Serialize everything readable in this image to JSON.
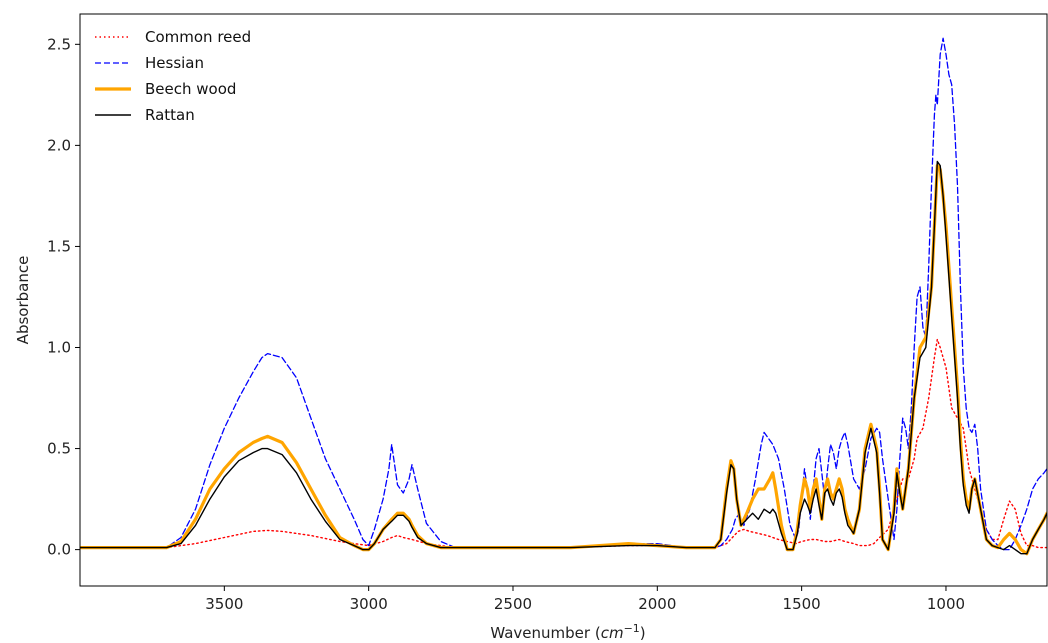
{
  "chart_data": {
    "type": "line",
    "title": "",
    "xlabel": "Wavenumber",
    "xlabel_unit": "cm",
    "xlabel_unit_exp": "−1",
    "ylabel": "Absorbance",
    "xlim": [
      4000,
      650
    ],
    "x_reversed": true,
    "ylim": [
      -0.18,
      2.65
    ],
    "xticks": [
      3500,
      3000,
      2500,
      2000,
      1500,
      1000
    ],
    "yticks": [
      0.0,
      0.5,
      1.0,
      1.5,
      2.0,
      2.5
    ],
    "grid": false,
    "legend": "top-left",
    "series": [
      {
        "name": "Common reed",
        "color": "#ff0000",
        "style": "dotted",
        "x": [
          4000,
          3800,
          3700,
          3600,
          3500,
          3400,
          3350,
          3300,
          3200,
          3100,
          3050,
          3000,
          2950,
          2920,
          2900,
          2880,
          2850,
          2800,
          2700,
          2500,
          2300,
          2100,
          2000,
          1900,
          1800,
          1760,
          1740,
          1720,
          1700,
          1680,
          1650,
          1620,
          1600,
          1580,
          1550,
          1520,
          1500,
          1470,
          1450,
          1420,
          1400,
          1370,
          1350,
          1320,
          1300,
          1270,
          1250,
          1230,
          1200,
          1180,
          1160,
          1150,
          1130,
          1110,
          1100,
          1080,
          1060,
          1040,
          1030,
          1020,
          1000,
          980,
          960,
          940,
          920,
          900,
          880,
          860,
          840,
          820,
          800,
          780,
          760,
          740,
          720,
          700,
          680,
          650
        ],
        "y": [
          0.01,
          0.01,
          0.01,
          0.03,
          0.06,
          0.09,
          0.095,
          0.09,
          0.07,
          0.04,
          0.03,
          0.02,
          0.04,
          0.06,
          0.07,
          0.06,
          0.05,
          0.03,
          0.01,
          0.01,
          0.01,
          0.02,
          0.02,
          0.01,
          0.01,
          0.03,
          0.06,
          0.09,
          0.1,
          0.09,
          0.08,
          0.07,
          0.06,
          0.05,
          0.04,
          0.03,
          0.04,
          0.05,
          0.05,
          0.04,
          0.04,
          0.05,
          0.04,
          0.03,
          0.02,
          0.02,
          0.03,
          0.06,
          0.1,
          0.2,
          0.3,
          0.35,
          0.35,
          0.45,
          0.55,
          0.6,
          0.75,
          0.95,
          1.04,
          1.0,
          0.9,
          0.7,
          0.65,
          0.6,
          0.4,
          0.3,
          0.2,
          0.1,
          0.05,
          0.05,
          0.15,
          0.24,
          0.2,
          0.08,
          0.02,
          0.02,
          0.01,
          0.01
        ]
      },
      {
        "name": "Hessian",
        "color": "#0000ff",
        "style": "dashed",
        "x": [
          4000,
          3800,
          3700,
          3650,
          3600,
          3550,
          3500,
          3450,
          3400,
          3370,
          3350,
          3300,
          3250,
          3200,
          3150,
          3100,
          3050,
          3020,
          3000,
          2980,
          2950,
          2930,
          2920,
          2910,
          2900,
          2880,
          2860,
          2850,
          2830,
          2800,
          2750,
          2700,
          2500,
          2300,
          2100,
          2000,
          1900,
          1800,
          1780,
          1760,
          1740,
          1730,
          1720,
          1700,
          1680,
          1660,
          1640,
          1630,
          1620,
          1600,
          1580,
          1560,
          1540,
          1520,
          1510,
          1500,
          1490,
          1480,
          1470,
          1460,
          1450,
          1440,
          1430,
          1420,
          1410,
          1400,
          1390,
          1380,
          1370,
          1360,
          1350,
          1340,
          1320,
          1300,
          1280,
          1260,
          1240,
          1230,
          1220,
          1200,
          1180,
          1170,
          1160,
          1150,
          1140,
          1130,
          1120,
          1110,
          1100,
          1090,
          1080,
          1070,
          1060,
          1050,
          1040,
          1035,
          1030,
          1020,
          1010,
          1000,
          990,
          980,
          970,
          960,
          950,
          940,
          930,
          920,
          910,
          900,
          890,
          880,
          860,
          840,
          820,
          800,
          790,
          780,
          760,
          740,
          720,
          700,
          680,
          660,
          650
        ],
        "y": [
          0.01,
          0.01,
          0.01,
          0.06,
          0.2,
          0.42,
          0.6,
          0.75,
          0.88,
          0.95,
          0.97,
          0.95,
          0.85,
          0.65,
          0.45,
          0.3,
          0.15,
          0.05,
          0.02,
          0.1,
          0.25,
          0.4,
          0.52,
          0.42,
          0.32,
          0.28,
          0.35,
          0.42,
          0.3,
          0.13,
          0.04,
          0.01,
          0.01,
          0.01,
          0.03,
          0.03,
          0.01,
          0.01,
          0.02,
          0.05,
          0.1,
          0.15,
          0.17,
          0.12,
          0.2,
          0.35,
          0.52,
          0.58,
          0.56,
          0.52,
          0.45,
          0.3,
          0.12,
          0.05,
          0.1,
          0.25,
          0.4,
          0.3,
          0.15,
          0.3,
          0.45,
          0.5,
          0.38,
          0.25,
          0.4,
          0.52,
          0.48,
          0.4,
          0.5,
          0.55,
          0.58,
          0.52,
          0.35,
          0.3,
          0.4,
          0.55,
          0.6,
          0.58,
          0.45,
          0.25,
          0.05,
          0.2,
          0.45,
          0.65,
          0.6,
          0.5,
          0.7,
          1.0,
          1.25,
          1.3,
          1.1,
          1.05,
          1.4,
          1.8,
          2.15,
          2.25,
          2.2,
          2.45,
          2.53,
          2.45,
          2.35,
          2.3,
          2.1,
          1.8,
          1.3,
          0.9,
          0.7,
          0.6,
          0.58,
          0.62,
          0.5,
          0.3,
          0.1,
          0.05,
          0.02,
          0.0,
          0.0,
          0.0,
          0.05,
          0.12,
          0.2,
          0.3,
          0.35,
          0.38,
          0.4
        ]
      },
      {
        "name": "Beech wood",
        "color": "#ffa500",
        "style": "solid-thick",
        "x": [
          4000,
          3800,
          3700,
          3650,
          3600,
          3550,
          3500,
          3450,
          3400,
          3370,
          3350,
          3300,
          3250,
          3200,
          3150,
          3100,
          3050,
          3020,
          3000,
          2980,
          2950,
          2920,
          2900,
          2880,
          2860,
          2850,
          2830,
          2800,
          2750,
          2700,
          2500,
          2300,
          2100,
          2000,
          1900,
          1800,
          1780,
          1760,
          1745,
          1735,
          1725,
          1710,
          1690,
          1670,
          1650,
          1630,
          1610,
          1600,
          1590,
          1570,
          1550,
          1530,
          1515,
          1505,
          1490,
          1480,
          1470,
          1460,
          1450,
          1440,
          1430,
          1420,
          1410,
          1400,
          1390,
          1380,
          1370,
          1360,
          1350,
          1340,
          1320,
          1300,
          1280,
          1260,
          1240,
          1230,
          1220,
          1200,
          1180,
          1170,
          1160,
          1150,
          1130,
          1110,
          1090,
          1070,
          1050,
          1040,
          1030,
          1020,
          1010,
          1000,
          990,
          980,
          970,
          960,
          950,
          940,
          930,
          920,
          910,
          900,
          880,
          860,
          840,
          820,
          800,
          780,
          760,
          740,
          720,
          700,
          680,
          660,
          650
        ],
        "y": [
          0.01,
          0.01,
          0.01,
          0.04,
          0.15,
          0.3,
          0.4,
          0.48,
          0.53,
          0.55,
          0.56,
          0.53,
          0.43,
          0.3,
          0.17,
          0.06,
          0.02,
          0.0,
          0.0,
          0.03,
          0.1,
          0.15,
          0.18,
          0.18,
          0.15,
          0.12,
          0.07,
          0.03,
          0.01,
          0.01,
          0.01,
          0.01,
          0.03,
          0.02,
          0.01,
          0.01,
          0.05,
          0.3,
          0.44,
          0.4,
          0.25,
          0.12,
          0.18,
          0.25,
          0.3,
          0.3,
          0.35,
          0.38,
          0.3,
          0.12,
          0.0,
          0.0,
          0.1,
          0.22,
          0.35,
          0.3,
          0.2,
          0.3,
          0.35,
          0.25,
          0.15,
          0.3,
          0.35,
          0.28,
          0.25,
          0.3,
          0.35,
          0.3,
          0.2,
          0.15,
          0.08,
          0.2,
          0.5,
          0.62,
          0.5,
          0.3,
          0.05,
          0.0,
          0.2,
          0.4,
          0.3,
          0.2,
          0.4,
          0.75,
          1.0,
          1.05,
          1.3,
          1.6,
          1.9,
          1.88,
          1.75,
          1.6,
          1.4,
          1.2,
          1.0,
          0.8,
          0.55,
          0.35,
          0.25,
          0.2,
          0.3,
          0.35,
          0.2,
          0.05,
          0.02,
          0.01,
          0.05,
          0.08,
          0.05,
          0.0,
          -0.02,
          0.05,
          0.1,
          0.15,
          0.18
        ]
      },
      {
        "name": "Rattan",
        "color": "#000000",
        "style": "solid",
        "x": [
          4000,
          3800,
          3700,
          3650,
          3600,
          3550,
          3500,
          3450,
          3400,
          3370,
          3350,
          3300,
          3250,
          3200,
          3150,
          3100,
          3050,
          3020,
          3000,
          2980,
          2950,
          2920,
          2900,
          2880,
          2860,
          2850,
          2830,
          2800,
          2750,
          2700,
          2500,
          2300,
          2100,
          2000,
          1900,
          1800,
          1780,
          1760,
          1745,
          1735,
          1725,
          1710,
          1690,
          1670,
          1650,
          1630,
          1610,
          1600,
          1590,
          1570,
          1550,
          1530,
          1515,
          1505,
          1490,
          1480,
          1470,
          1460,
          1450,
          1440,
          1430,
          1420,
          1410,
          1400,
          1390,
          1380,
          1370,
          1360,
          1350,
          1340,
          1320,
          1300,
          1280,
          1260,
          1240,
          1230,
          1220,
          1200,
          1180,
          1170,
          1160,
          1150,
          1130,
          1110,
          1090,
          1070,
          1050,
          1040,
          1030,
          1020,
          1010,
          1000,
          990,
          980,
          970,
          960,
          950,
          940,
          930,
          920,
          910,
          900,
          880,
          860,
          840,
          820,
          800,
          780,
          760,
          740,
          720,
          700,
          680,
          660,
          650
        ],
        "y": [
          0.01,
          0.01,
          0.01,
          0.03,
          0.12,
          0.25,
          0.36,
          0.44,
          0.48,
          0.5,
          0.5,
          0.47,
          0.38,
          0.25,
          0.14,
          0.05,
          0.02,
          0.0,
          0.0,
          0.03,
          0.1,
          0.14,
          0.17,
          0.17,
          0.14,
          0.11,
          0.06,
          0.03,
          0.01,
          0.01,
          0.01,
          0.01,
          0.02,
          0.02,
          0.01,
          0.01,
          0.05,
          0.28,
          0.42,
          0.4,
          0.25,
          0.12,
          0.15,
          0.18,
          0.15,
          0.2,
          0.18,
          0.2,
          0.18,
          0.08,
          0.0,
          0.0,
          0.08,
          0.18,
          0.25,
          0.22,
          0.18,
          0.25,
          0.3,
          0.22,
          0.15,
          0.28,
          0.3,
          0.25,
          0.22,
          0.28,
          0.3,
          0.26,
          0.18,
          0.12,
          0.08,
          0.2,
          0.48,
          0.6,
          0.48,
          0.28,
          0.05,
          0.0,
          0.18,
          0.38,
          0.28,
          0.2,
          0.4,
          0.75,
          0.95,
          1.0,
          1.3,
          1.6,
          1.92,
          1.9,
          1.75,
          1.55,
          1.35,
          1.15,
          0.95,
          0.75,
          0.5,
          0.32,
          0.22,
          0.18,
          0.3,
          0.35,
          0.2,
          0.05,
          0.02,
          0.01,
          0.0,
          0.02,
          0.0,
          -0.02,
          -0.02,
          0.05,
          0.1,
          0.15,
          0.18
        ]
      }
    ]
  }
}
